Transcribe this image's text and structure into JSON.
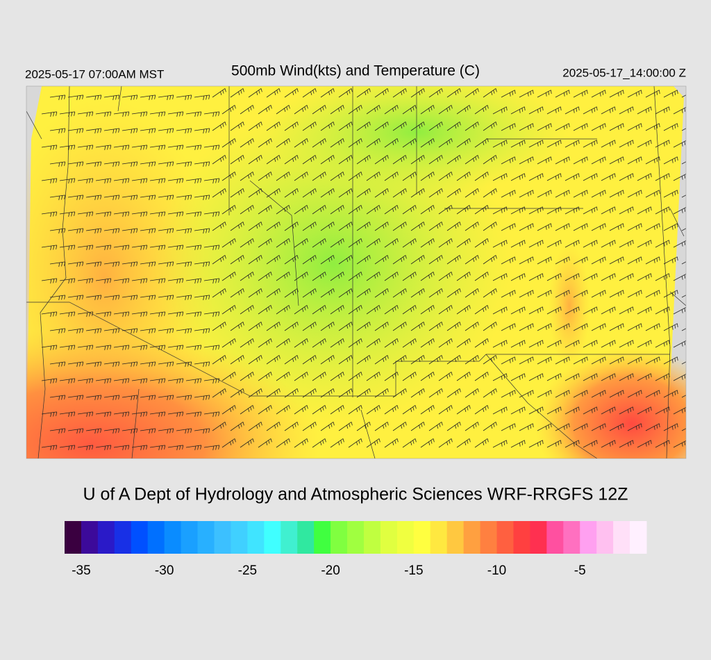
{
  "header": {
    "title": "500mb Wind(kts) and Temperature (C)",
    "local_time": "2025-05-17 07:00AM MST",
    "valid_time": "2025-05-17_14:00:00 Z"
  },
  "credit": "U of A Dept of Hydrology and Atmospheric Sciences WRF-RRGFS 12Z",
  "colorbar": {
    "range": [
      -36,
      -1
    ],
    "ticks": [
      -35,
      -30,
      -25,
      -20,
      -15,
      -10,
      -5
    ],
    "colors": [
      "#3a0040",
      "#3c0a9a",
      "#2a1ac8",
      "#1830e6",
      "#0050ff",
      "#0070ff",
      "#0a8cff",
      "#1aa0ff",
      "#28b0ff",
      "#3cc0ff",
      "#40d0ff",
      "#40e4ff",
      "#40ffff",
      "#40f0d0",
      "#30e8a0",
      "#40ff40",
      "#80ff40",
      "#a0ff40",
      "#c0ff40",
      "#e0ff40",
      "#f0ff40",
      "#ffff40",
      "#ffe840",
      "#ffc840",
      "#ffa040",
      "#ff8040",
      "#ff6040",
      "#ff4040",
      "#ff3050",
      "#ff50a0",
      "#ff70c0",
      "#ffa0f0",
      "#ffc0f0",
      "#ffe0f8",
      "#fff0ff"
    ]
  }
}
